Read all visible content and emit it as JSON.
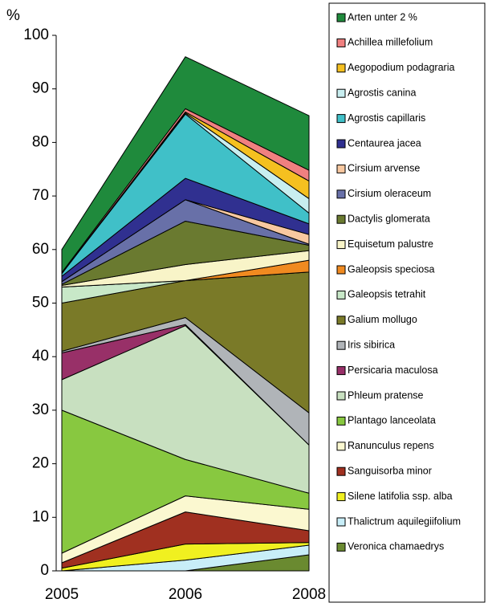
{
  "chart_data": {
    "type": "stacked_area",
    "y_label": "%",
    "categories": [
      "2005",
      "2006",
      "2008"
    ],
    "ylim": [
      0,
      100
    ],
    "yticks": [
      0,
      10,
      20,
      30,
      40,
      50,
      60,
      70,
      80,
      90,
      100
    ],
    "series": [
      {
        "name": "Veronica chamaedrys",
        "color": "#6a8a30",
        "values": [
          0,
          0,
          3
        ]
      },
      {
        "name": "Thalictrum aquilegiifolium",
        "color": "#c8eef8",
        "values": [
          0,
          2,
          1.8
        ]
      },
      {
        "name": "Silene latifolia ssp. alba",
        "color": "#f0f020",
        "values": [
          0.5,
          3,
          0.5
        ]
      },
      {
        "name": "Sanguisorba minor",
        "color": "#a03020",
        "values": [
          1,
          6,
          2.2
        ]
      },
      {
        "name": "Ranunculus repens",
        "color": "#fbf8d0",
        "values": [
          1.8,
          3,
          4
        ]
      },
      {
        "name": "Plantago lanceolata",
        "color": "#88c840",
        "values": [
          26.7,
          6.8,
          3
        ]
      },
      {
        "name": "Phleum pratense",
        "color": "#c8e0c0",
        "values": [
          5.7,
          25,
          9
        ]
      },
      {
        "name": "Persicaria maculosa",
        "color": "#983068",
        "values": [
          5,
          0.2,
          0
        ]
      },
      {
        "name": "Iris sibirica",
        "color": "#b0b4b8",
        "values": [
          0.3,
          1.3,
          6
        ]
      },
      {
        "name": "Galium mollugo",
        "color": "#7a7a28",
        "values": [
          9,
          6.9,
          26.3
        ]
      },
      {
        "name": "Galeopsis tetrahit",
        "color": "#c8e8c8",
        "values": [
          3,
          0,
          0
        ]
      },
      {
        "name": "Galeopsis speciosa",
        "color": "#f08a20",
        "values": [
          0,
          0,
          2.2
        ]
      },
      {
        "name": "Equisetum palustre",
        "color": "#f8f4c8",
        "values": [
          0.3,
          3,
          1.8
        ]
      },
      {
        "name": "Dactylis glomerata",
        "color": "#6a7a30",
        "values": [
          0.2,
          8.1,
          1
        ]
      },
      {
        "name": "Cirsium oleraceum",
        "color": "#6870a8",
        "values": [
          0.5,
          4,
          0.2
        ]
      },
      {
        "name": "Cirsium arvense",
        "color": "#f8c8a0",
        "values": [
          0,
          0,
          1.8
        ]
      },
      {
        "name": "Centaurea jacea",
        "color": "#303090",
        "values": [
          1,
          4,
          2
        ]
      },
      {
        "name": "Agrostis capillaris",
        "color": "#40c0c8",
        "values": [
          0.5,
          12,
          2
        ]
      },
      {
        "name": "Agrostis canina",
        "color": "#c8eef0",
        "values": [
          0,
          0.2,
          2.7
        ]
      },
      {
        "name": "Aegopodium podagraria",
        "color": "#f5c020",
        "values": [
          0,
          0.2,
          3.3
        ]
      },
      {
        "name": "Achillea millefolium",
        "color": "#f08080",
        "values": [
          0.2,
          0.6,
          2
        ]
      },
      {
        "name": "Arten unter 2 %",
        "color": "#1f8a3c",
        "values": [
          4.3,
          9.7,
          10.2
        ]
      }
    ]
  }
}
